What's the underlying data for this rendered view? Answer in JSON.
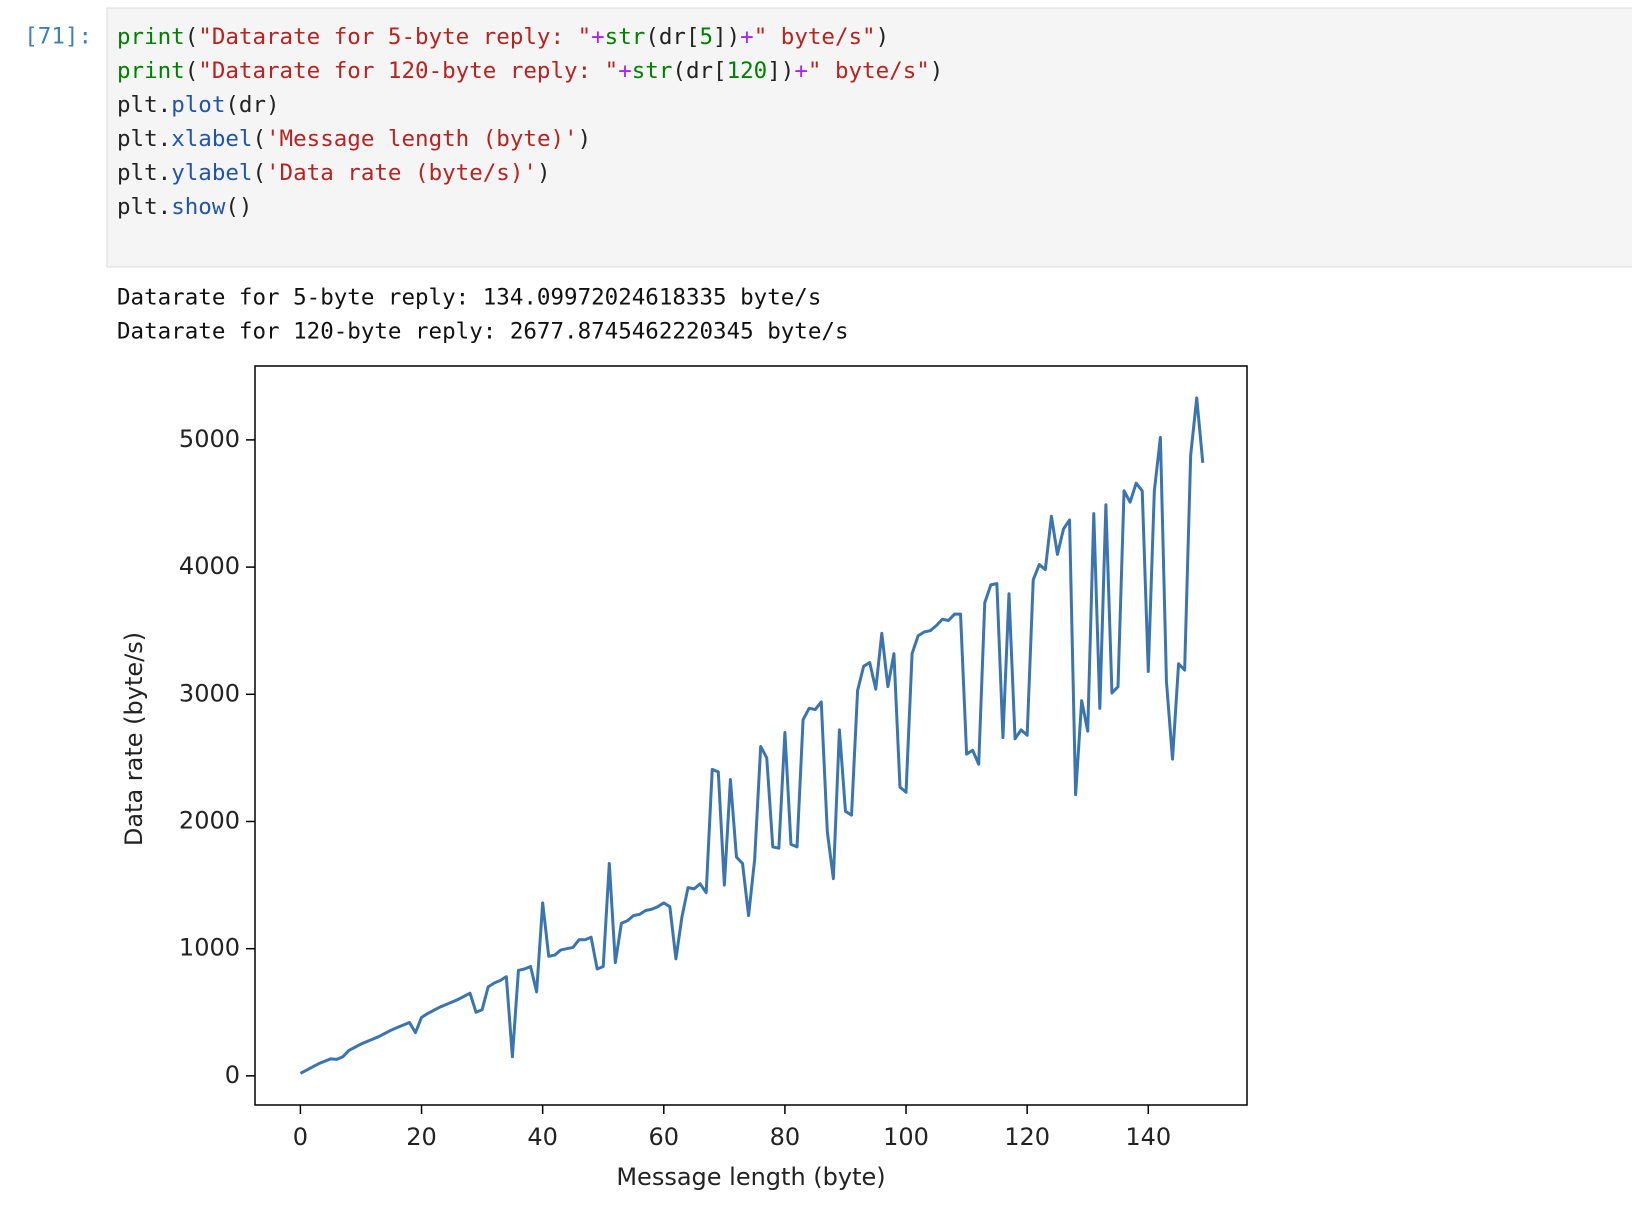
{
  "cell": {
    "prompt": "[71]:",
    "code": [
      "print(\"Datarate for 5-byte reply: \"+str(dr[5])+\" byte/s\")",
      "print(\"Datarate for 120-byte reply: \"+str(dr[120])+\" byte/s\")",
      "plt.plot(dr)",
      "plt.xlabel('Message length (byte)')",
      "plt.ylabel('Data rate (byte/s)')",
      "plt.show()"
    ],
    "output": [
      "Datarate for 5-byte reply: 134.09972024618335 byte/s",
      "Datarate for 120-byte reply: 2677.8745462220345 byte/s"
    ]
  },
  "chart_data": {
    "type": "line",
    "xlabel": "Message length (byte)",
    "ylabel": "Data rate (byte/s)",
    "color": "#3b75af",
    "x": [
      0,
      1,
      2,
      3,
      4,
      5,
      6,
      7,
      8,
      9,
      10,
      11,
      12,
      13,
      14,
      15,
      16,
      17,
      18,
      19,
      20,
      21,
      22,
      23,
      24,
      25,
      26,
      27,
      28,
      29,
      30,
      31,
      32,
      33,
      34,
      35,
      36,
      37,
      38,
      39,
      40,
      41,
      42,
      43,
      44,
      45,
      46,
      47,
      48,
      49,
      50,
      51,
      52,
      53,
      54,
      55,
      56,
      57,
      58,
      59,
      60,
      61,
      62,
      63,
      64,
      65,
      66,
      67,
      68,
      69,
      70,
      71,
      72,
      73,
      74,
      75,
      76,
      77,
      78,
      79,
      80,
      81,
      82,
      83,
      84,
      85,
      86,
      87,
      88,
      89,
      90,
      91,
      92,
      93,
      94,
      95,
      96,
      97,
      98,
      99,
      100,
      101,
      102,
      103,
      104,
      105,
      106,
      107,
      108,
      109,
      110,
      111,
      112,
      113,
      114,
      115,
      116,
      117,
      118,
      119,
      120,
      121,
      122,
      123,
      124,
      125,
      126,
      127,
      128,
      129,
      130,
      131,
      132,
      133,
      134,
      135,
      136,
      137,
      138,
      139,
      140,
      141,
      142,
      143,
      144,
      145,
      146,
      147,
      148,
      149
    ],
    "values": [
      20,
      45,
      70,
      95,
      115,
      134.09972024618335,
      130,
      150,
      200,
      225,
      250,
      270,
      290,
      310,
      335,
      360,
      380,
      400,
      420,
      340,
      460,
      490,
      515,
      540,
      560,
      580,
      600,
      625,
      650,
      500,
      520,
      700,
      730,
      750,
      780,
      150,
      830,
      840,
      860,
      660,
      1360,
      940,
      950,
      990,
      1000,
      1010,
      1070,
      1070,
      1090,
      840,
      860,
      1670,
      890,
      1200,
      1220,
      1260,
      1270,
      1300,
      1310,
      1330,
      1360,
      1330,
      920,
      1250,
      1480,
      1470,
      1510,
      1440,
      2410,
      2390,
      1500,
      2330,
      1720,
      1670,
      1260,
      1700,
      2590,
      2500,
      1800,
      1790,
      2700,
      1820,
      1800,
      2800,
      2890,
      2880,
      2940,
      1920,
      1550,
      2720,
      2080,
      2050,
      3030,
      3220,
      3250,
      3040,
      3480,
      3060,
      3320,
      2270,
      2230,
      3320,
      3460,
      3490,
      3500,
      3540,
      3590,
      3580,
      3630,
      3630,
      2530,
      2560,
      2450,
      3720,
      3860,
      3870,
      2660,
      3790,
      2650,
      2720,
      2677.8745462220345,
      3900,
      4020,
      3980,
      4400,
      4100,
      4300,
      4370,
      2210,
      2950,
      2710,
      4420,
      2890,
      4490,
      3010,
      3060,
      4600,
      4510,
      4660,
      4600,
      3180,
      4600,
      5020,
      3100,
      2490,
      3240,
      3190,
      4880,
      5330,
      4820
    ],
    "xlim": [
      -7.5,
      156.3
    ],
    "ylim": [
      -229,
      5581
    ],
    "xticks": [
      0,
      20,
      40,
      60,
      80,
      100,
      120,
      140
    ],
    "yticks": [
      0,
      1000,
      2000,
      3000,
      4000,
      5000
    ]
  }
}
